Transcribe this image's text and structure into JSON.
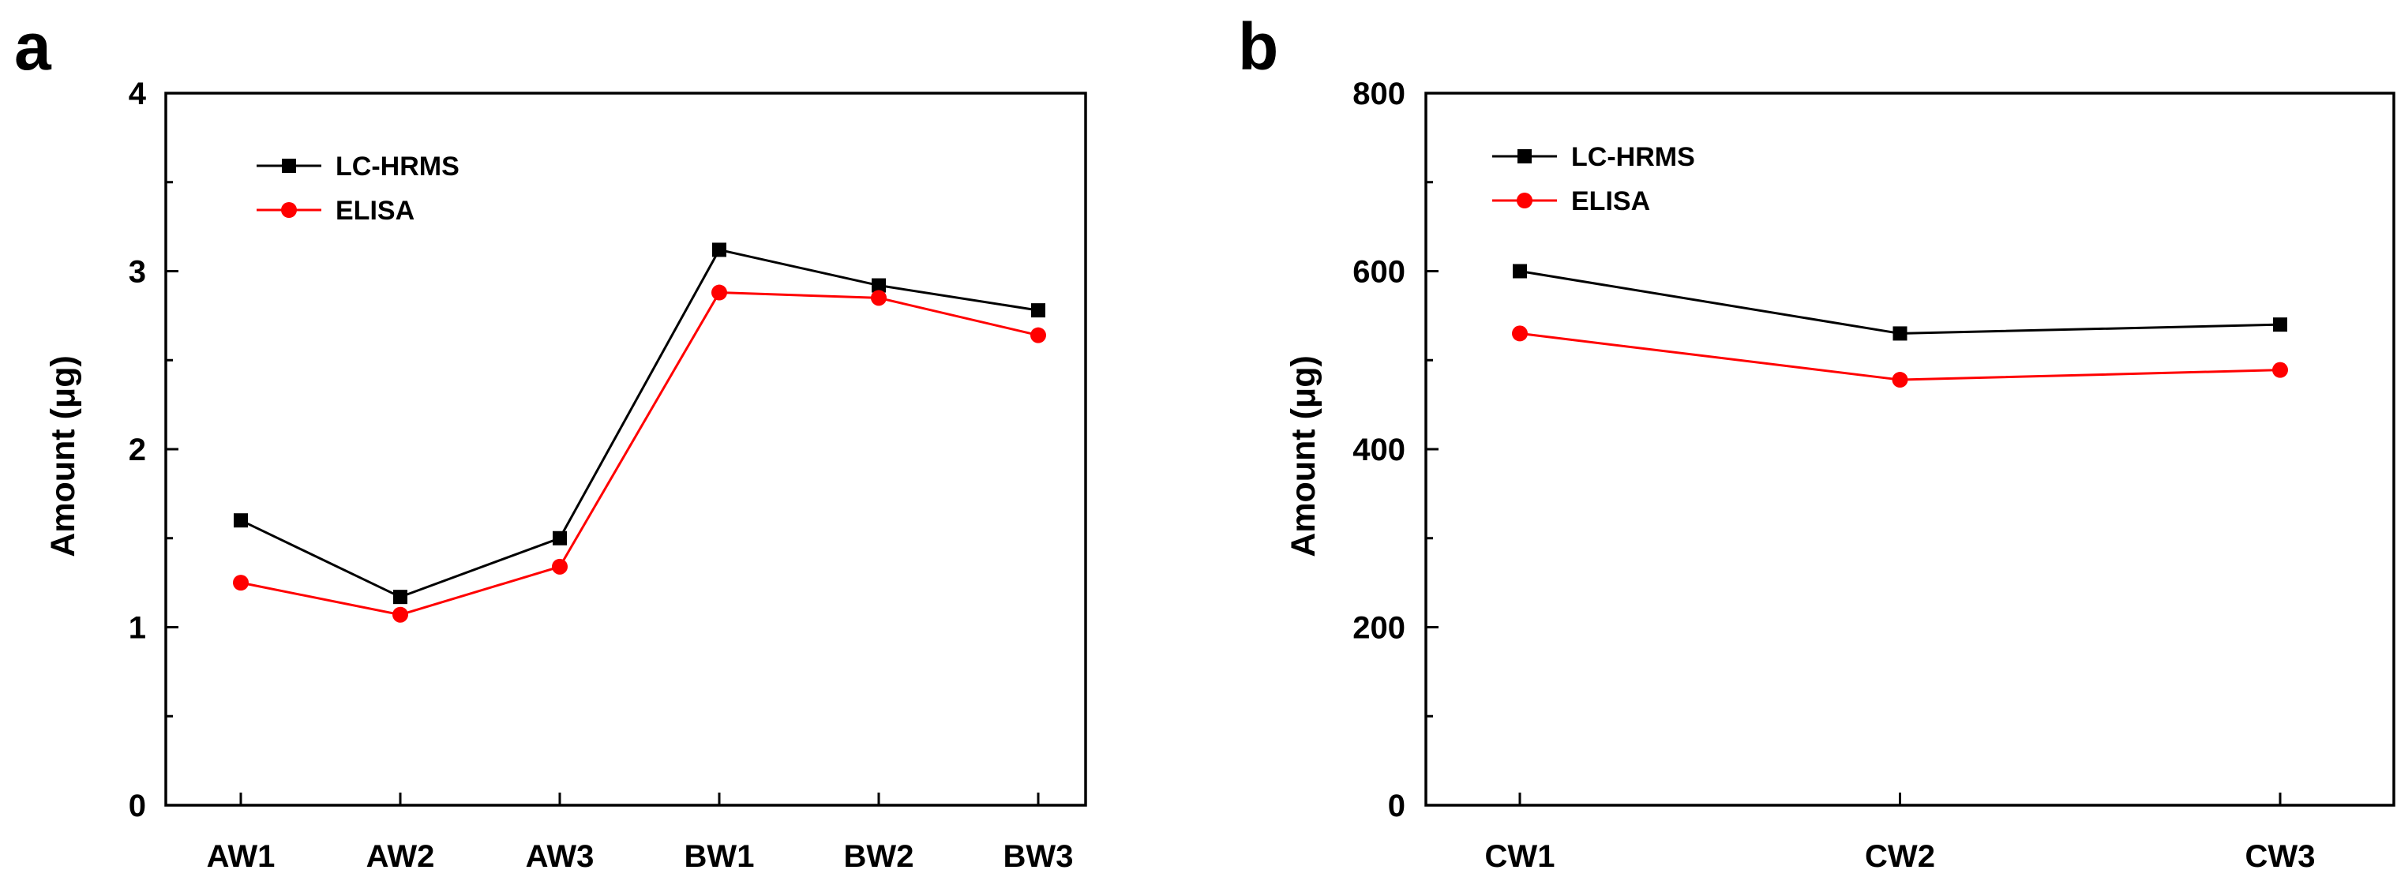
{
  "figure": {
    "panels": [
      {
        "letter": "a"
      },
      {
        "letter": "b"
      }
    ]
  },
  "chart_data": [
    {
      "type": "line",
      "panel": "a",
      "title": "",
      "xlabel": "",
      "ylabel": "Amount (μg)",
      "categories": [
        "AW1",
        "AW2",
        "AW3",
        "BW1",
        "BW2",
        "BW3"
      ],
      "ylim": [
        0,
        4
      ],
      "yticks": [
        "0",
        "1",
        "2",
        "3",
        "4"
      ],
      "legend": "top-left",
      "grid": false,
      "series": [
        {
          "name": "LC-HRMS",
          "color": "#000000",
          "marker": "square",
          "values": [
            1.6,
            1.17,
            1.5,
            3.12,
            2.92,
            2.78
          ]
        },
        {
          "name": "ELISA",
          "color": "#ff0000",
          "marker": "circle",
          "values": [
            1.25,
            1.07,
            1.34,
            2.88,
            2.85,
            2.64
          ]
        }
      ]
    },
    {
      "type": "line",
      "panel": "b",
      "title": "",
      "xlabel": "",
      "ylabel": "Amount (μg)",
      "categories": [
        "CW1",
        "CW2",
        "CW3"
      ],
      "ylim": [
        0,
        800
      ],
      "yticks": [
        "0",
        "200",
        "400",
        "600",
        "800"
      ],
      "legend": "top-left",
      "grid": false,
      "series": [
        {
          "name": "LC-HRMS",
          "color": "#000000",
          "marker": "square",
          "values": [
            600,
            530,
            540
          ]
        },
        {
          "name": "ELISA",
          "color": "#ff0000",
          "marker": "circle",
          "values": [
            530,
            478,
            489
          ]
        }
      ]
    }
  ]
}
